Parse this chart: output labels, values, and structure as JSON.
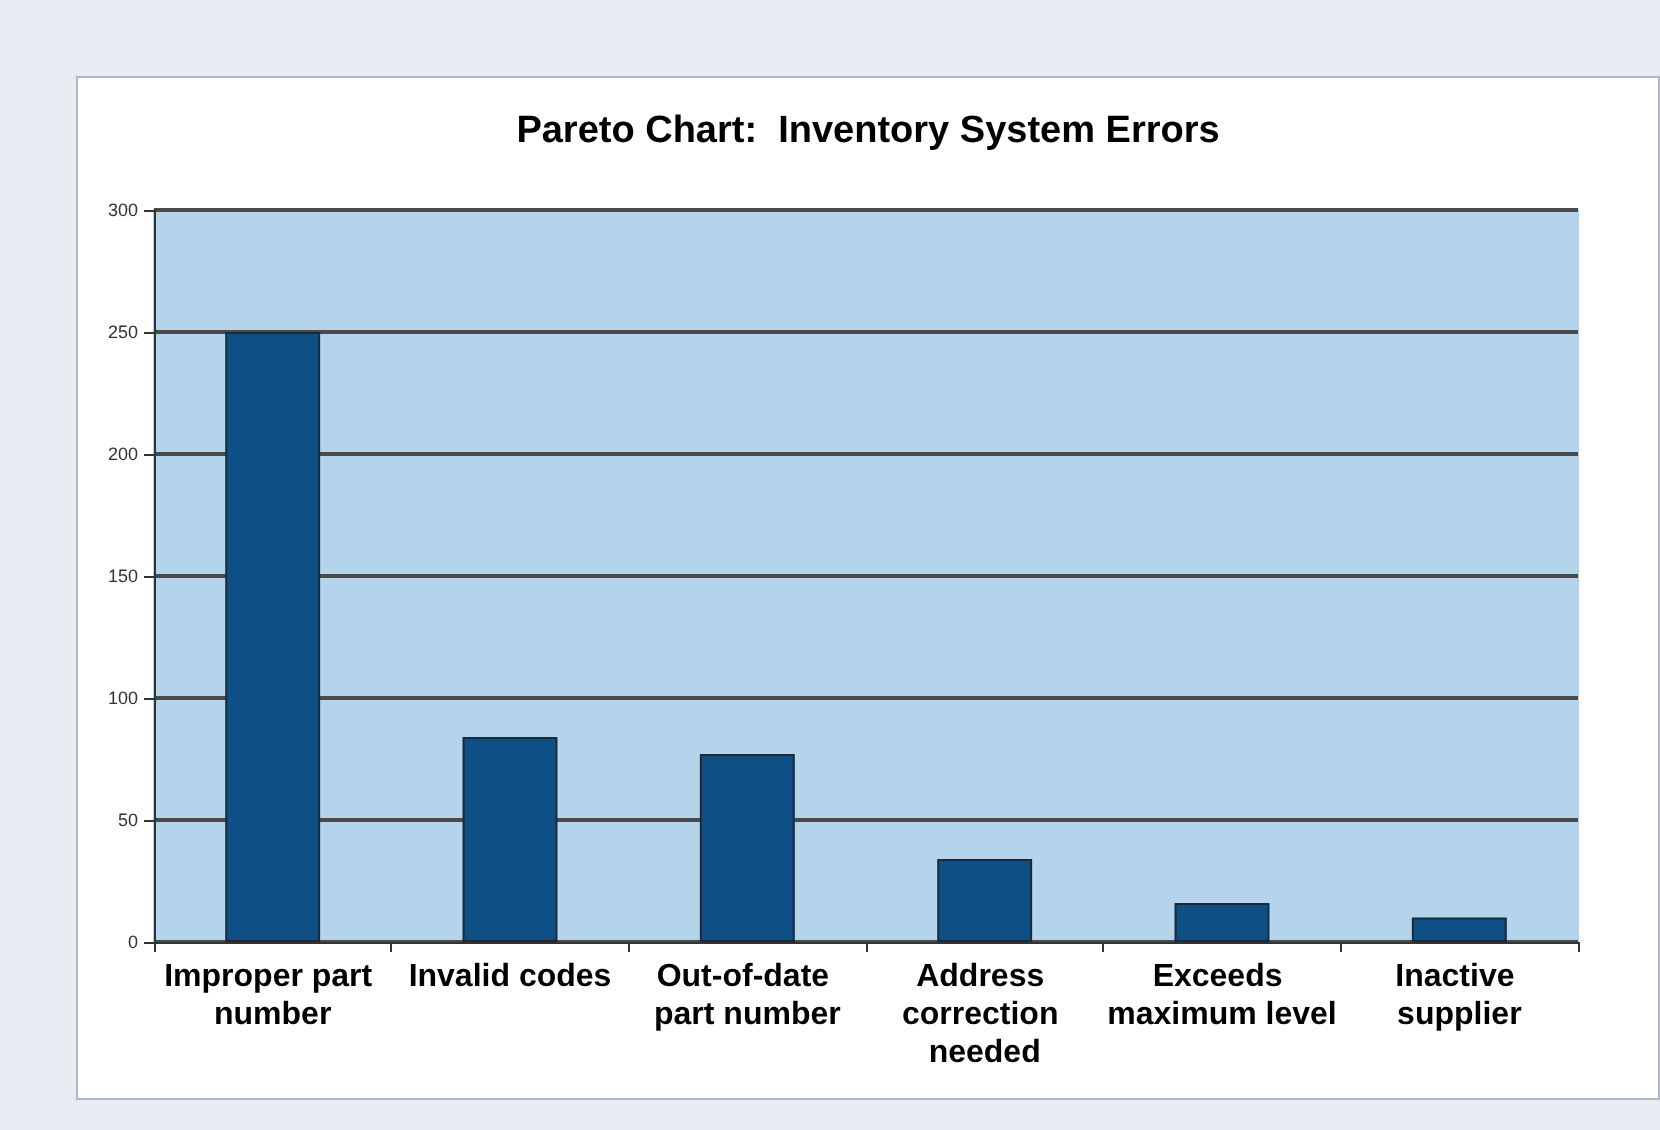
{
  "chart_data": {
    "type": "bar",
    "title": "Pareto Chart:  Inventory System Errors",
    "categories": [
      "Improper part number",
      "Invalid codes",
      "Out-of-date part number",
      "Address correction needed",
      "Exceeds maximum level",
      "Inactive supplier"
    ],
    "values": [
      250,
      84,
      77,
      34,
      16,
      10
    ],
    "color": "#0e4f86",
    "ylim": [
      0,
      300
    ],
    "yticks": [
      0,
      50,
      100,
      150,
      200,
      250,
      300
    ],
    "grid": "y"
  }
}
